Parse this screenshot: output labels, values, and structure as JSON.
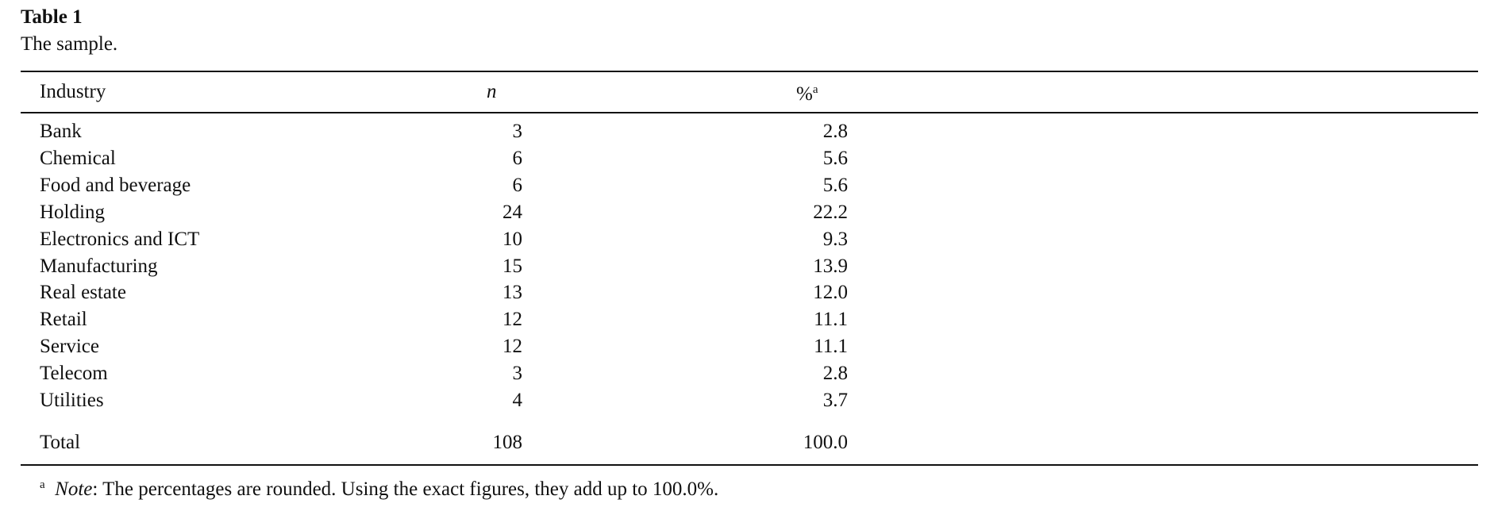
{
  "title": "Table 1",
  "caption": "The sample.",
  "table": {
    "columns": [
      "Industry",
      "n",
      "%"
    ],
    "rows": [
      [
        "Bank",
        "3",
        "2.8"
      ],
      [
        "Chemical",
        "6",
        "5.6"
      ],
      [
        "Food and beverage",
        "6",
        "5.6"
      ],
      [
        "Holding",
        "24",
        "22.2"
      ],
      [
        "Electronics and ICT",
        "10",
        "9.3"
      ],
      [
        "Manufacturing",
        "15",
        "13.9"
      ],
      [
        "Real estate",
        "13",
        "12.0"
      ],
      [
        "Retail",
        "12",
        "11.1"
      ],
      [
        "Service",
        "12",
        "11.1"
      ],
      [
        "Telecom",
        "3",
        "2.8"
      ],
      [
        "Utilities",
        "4",
        "3.7"
      ]
    ],
    "total": [
      "Total",
      "108",
      "100.0"
    ]
  },
  "note": {
    "marker": "a",
    "label": "Note",
    "text": ": The percentages are rounded. Using the exact figures, they add up to 100.0%."
  }
}
